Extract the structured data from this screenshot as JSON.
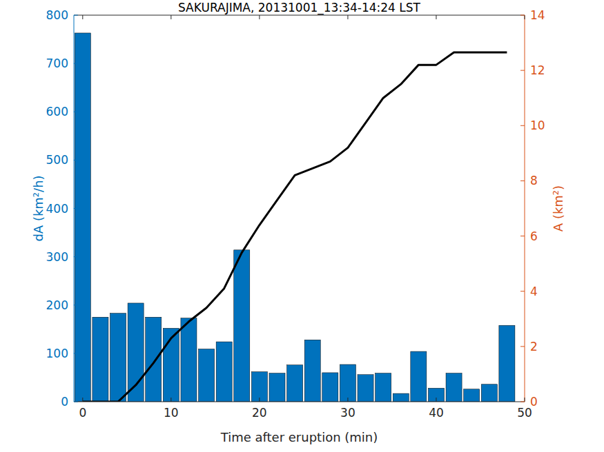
{
  "chart_data": {
    "type": "bar",
    "title": "SAKURAJIMA, 20131001_13:34-14:24 LST",
    "x_label": "Time after eruption (min)",
    "y_label": "dA (km²/h)",
    "y2_label": "A (km²)",
    "x": [
      0,
      2,
      4,
      6,
      8,
      10,
      12,
      14,
      16,
      18,
      20,
      22,
      24,
      26,
      28,
      30,
      32,
      34,
      36,
      38,
      40,
      42,
      44,
      46,
      48
    ],
    "series": [
      {
        "name": "dA",
        "type": "bar",
        "axis": "y",
        "color": "#0072BD",
        "values": [
          763,
          175,
          183,
          204,
          175,
          152,
          173,
          109,
          124,
          314,
          62,
          59,
          76,
          128,
          60,
          77,
          56,
          59,
          17,
          104,
          28,
          59,
          26,
          36,
          158
        ]
      },
      {
        "name": "A",
        "type": "line",
        "axis": "y2",
        "color": "#000000",
        "line_style": "solid",
        "values": [
          0.0,
          0.0,
          0.0,
          0.6,
          1.4,
          2.3,
          2.9,
          3.4,
          4.1,
          5.4,
          6.4,
          7.3,
          8.2,
          8.45,
          8.7,
          9.2,
          10.1,
          11.0,
          11.5,
          12.2,
          12.2,
          12.65,
          12.65,
          12.65,
          12.65
        ]
      }
    ],
    "xlim": [
      -1,
      50
    ],
    "xticks": [
      0,
      10,
      20,
      30,
      40,
      50
    ],
    "ylim": [
      0,
      800
    ],
    "yticks": [
      0,
      100,
      200,
      300,
      400,
      500,
      600,
      700,
      800
    ],
    "y2lim": [
      0,
      14
    ],
    "y2ticks": [
      0,
      2,
      4,
      6,
      8,
      10,
      12,
      14
    ],
    "y_color": "#0072BD",
    "y2_color": "#D95319",
    "grid": false
  }
}
